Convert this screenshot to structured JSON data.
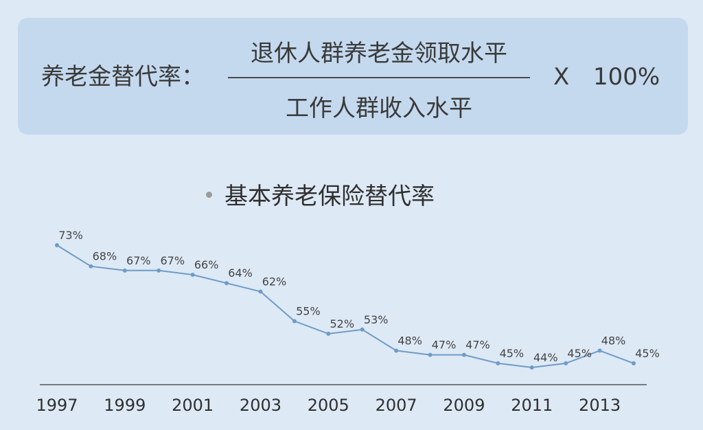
{
  "formula": {
    "lhs": "养老金替代率：",
    "numerator": "退休人群养老金领取水平",
    "denominator": "工作人群收入水平",
    "times_symbol": "X",
    "multiplier": "100%"
  },
  "chart_data": {
    "type": "line",
    "title": "基本养老保险替代率",
    "x": [
      1997,
      1998,
      1999,
      2000,
      2001,
      2002,
      2003,
      2004,
      2005,
      2006,
      2007,
      2008,
      2009,
      2010,
      2011,
      2012,
      2013,
      2014
    ],
    "x_tick_labels": [
      "1997",
      "1999",
      "2001",
      "2003",
      "2005",
      "2007",
      "2009",
      "2011",
      "2013"
    ],
    "series": [
      {
        "values": [
          73,
          68,
          67,
          67,
          66,
          64,
          62,
          55,
          52,
          53,
          48,
          47,
          47,
          45,
          44,
          45,
          48,
          45
        ],
        "labels": [
          "73%",
          "68%",
          "67%",
          "67%",
          "66%",
          "64%",
          "62%",
          "55%",
          "52%",
          "53%",
          "48%",
          "47%",
          "47%",
          "45%",
          "44%",
          "45%",
          "48%",
          "45%"
        ]
      }
    ],
    "grid": false,
    "line_color": "#6f9bc6",
    "axis_color": "#555555"
  }
}
